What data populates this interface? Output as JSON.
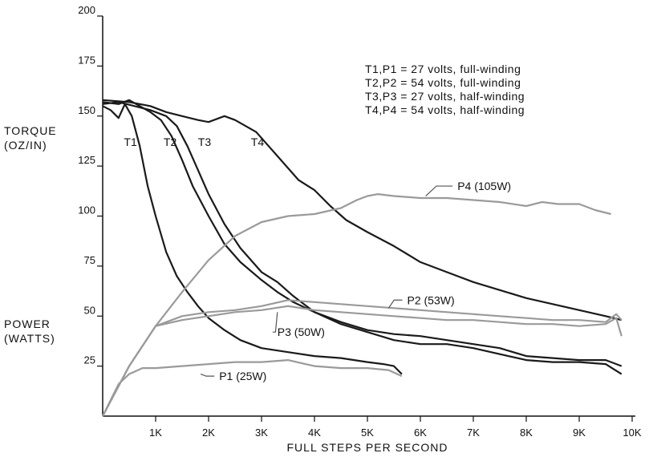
{
  "chart_data": {
    "type": "line",
    "xlabel": "FULL STEPS PER SECOND",
    "ylabel_torque": [
      "TORQUE",
      "(OZ/IN)"
    ],
    "ylabel_power": [
      "POWER",
      "(WATTS)"
    ],
    "xlim": [
      0,
      10000
    ],
    "ylim": [
      0,
      200
    ],
    "x_ticks": [
      {
        "value": 1000,
        "label": "1K"
      },
      {
        "value": 2000,
        "label": "2K"
      },
      {
        "value": 3000,
        "label": "3K"
      },
      {
        "value": 4000,
        "label": "4K"
      },
      {
        "value": 5000,
        "label": "5K"
      },
      {
        "value": 6000,
        "label": "6K"
      },
      {
        "value": 7000,
        "label": "7K"
      },
      {
        "value": 8000,
        "label": "8K"
      },
      {
        "value": 9000,
        "label": "9K"
      },
      {
        "value": 10000,
        "label": "10K"
      }
    ],
    "y_ticks": [
      {
        "value": 25,
        "label": "25"
      },
      {
        "value": 50,
        "label": "50"
      },
      {
        "value": 75,
        "label": "75"
      },
      {
        "value": 100,
        "label": "100"
      },
      {
        "value": 125,
        "label": "125"
      },
      {
        "value": 150,
        "label": "150"
      },
      {
        "value": 175,
        "label": "175"
      },
      {
        "value": 200,
        "label": "200"
      }
    ],
    "legend": [
      "T1,P1 = 27 volts, full-winding",
      "T2,P2 = 54 volts, full-winding",
      "T3,P3 = 27 volts, half-winding",
      "T4,P4 = 54 volts, half-winding"
    ],
    "series": [
      {
        "name": "T1",
        "kind": "torque",
        "x": [
          0,
          150,
          300,
          420,
          550,
          700,
          850,
          1000,
          1200,
          1400,
          1600,
          1800,
          2000,
          2300,
          2600,
          3000,
          3500,
          4000,
          4500,
          5000,
          5300,
          5500,
          5650
        ],
        "y": [
          155,
          153,
          149,
          156,
          150,
          135,
          115,
          100,
          82,
          70,
          62,
          55,
          49,
          43,
          38,
          34,
          32,
          30,
          29,
          27,
          26,
          25,
          21
        ],
        "label": "T1",
        "label_x": 400,
        "label_y": 135
      },
      {
        "name": "T2",
        "kind": "torque",
        "x": [
          0,
          300,
          500,
          700,
          900,
          1100,
          1300,
          1500,
          1700,
          2000,
          2300,
          2600,
          3000,
          3300,
          3600,
          4000,
          4500,
          5000,
          5500,
          6000,
          6500,
          7000,
          7500,
          8000,
          8500,
          9000,
          9500,
          9800
        ],
        "y": [
          157,
          156,
          158,
          155,
          152,
          148,
          140,
          128,
          115,
          100,
          86,
          77,
          68,
          62,
          57,
          52,
          46,
          42,
          38,
          36,
          36,
          34,
          31,
          28,
          27,
          27,
          26,
          21
        ],
        "label": "T2",
        "label_x": 1150,
        "label_y": 135
      },
      {
        "name": "T3",
        "kind": "torque",
        "x": [
          0,
          300,
          600,
          900,
          1200,
          1400,
          1600,
          1800,
          2000,
          2300,
          2600,
          3000,
          3300,
          3600,
          4000,
          4500,
          5000,
          5500,
          6000,
          6500,
          7000,
          7500,
          8000,
          8500,
          9000,
          9500,
          9800
        ],
        "y": [
          156,
          157,
          155,
          153,
          150,
          145,
          135,
          123,
          111,
          96,
          84,
          72,
          67,
          60,
          52,
          47,
          43,
          41,
          40,
          38,
          36,
          34,
          30,
          29,
          28,
          28,
          25
        ],
        "label": "T3",
        "label_x": 1800,
        "label_y": 135
      },
      {
        "name": "T4",
        "kind": "torque",
        "x": [
          0,
          500,
          900,
          1200,
          1500,
          1800,
          2000,
          2300,
          2500,
          2700,
          2900,
          3100,
          3300,
          3500,
          3700,
          4000,
          4300,
          4600,
          5000,
          5500,
          6000,
          6500,
          7000,
          7500,
          8000,
          8500,
          9000,
          9500,
          9800
        ],
        "y": [
          158,
          157,
          155,
          152,
          150,
          148,
          147,
          150,
          148,
          145,
          142,
          136,
          130,
          124,
          118,
          113,
          105,
          98,
          92,
          85,
          77,
          72,
          67,
          63,
          59,
          56,
          53,
          50,
          48
        ],
        "label": "T4",
        "label_x": 2800,
        "label_y": 135
      },
      {
        "name": "P1 (25W)",
        "kind": "power",
        "x": [
          0,
          300,
          500,
          750,
          1000,
          1500,
          2000,
          2500,
          3000,
          3500,
          4000,
          4500,
          5000,
          5400,
          5650
        ],
        "y": [
          0,
          16,
          21,
          24,
          24,
          25,
          26,
          27,
          27,
          28,
          25,
          24,
          24,
          23,
          20
        ],
        "label": "P1 (25W)",
        "label_x": 2200,
        "label_y": 18,
        "leader_x": 1850,
        "leader_y": 21
      },
      {
        "name": "P2 (53W)",
        "kind": "power",
        "x": [
          0,
          500,
          1000,
          1500,
          2000,
          2500,
          3000,
          3500,
          4000,
          4500,
          5000,
          5500,
          6000,
          6500,
          7000,
          7500,
          8000,
          8500,
          9000,
          9500,
          9700,
          9800
        ],
        "y": [
          0,
          25,
          45,
          50,
          52,
          53,
          55,
          58,
          57,
          56,
          55,
          54,
          53,
          52,
          51,
          50,
          49,
          48,
          48,
          47,
          51,
          48
        ],
        "label": "P2 (53W)",
        "label_x": 5750,
        "label_y": 56,
        "leader_x": 5400,
        "leader_y": 54
      },
      {
        "name": "P3 (50W)",
        "kind": "power",
        "x": [
          0,
          500,
          1000,
          1500,
          2000,
          2500,
          3000,
          3500,
          4000,
          4500,
          5000,
          5500,
          6000,
          6500,
          7000,
          7500,
          8000,
          8500,
          9000,
          9500,
          9700,
          9800
        ],
        "y": [
          0,
          25,
          45,
          48,
          50,
          52,
          53,
          55,
          53,
          52,
          51,
          50,
          49,
          48,
          48,
          47,
          46,
          46,
          45,
          46,
          49,
          40
        ],
        "label": "P3 (50W)",
        "label_x": 3300,
        "label_y": 40,
        "leader_x": 3300,
        "leader_y": 52
      },
      {
        "name": "P4 (105W)",
        "kind": "power",
        "x": [
          0,
          500,
          1000,
          1500,
          2000,
          2500,
          3000,
          3500,
          4000,
          4500,
          4800,
          5000,
          5200,
          5500,
          6000,
          6500,
          7000,
          7500,
          8000,
          8300,
          8600,
          9000,
          9300,
          9600
        ],
        "y": [
          0,
          25,
          45,
          62,
          78,
          90,
          97,
          100,
          101,
          104,
          108,
          110,
          111,
          110,
          109,
          109,
          108,
          107,
          105,
          107,
          106,
          106,
          103,
          101
        ],
        "label": "P4 (105W)",
        "label_x": 6700,
        "label_y": 113,
        "leader_x": 6100,
        "leader_y": 110
      }
    ]
  }
}
